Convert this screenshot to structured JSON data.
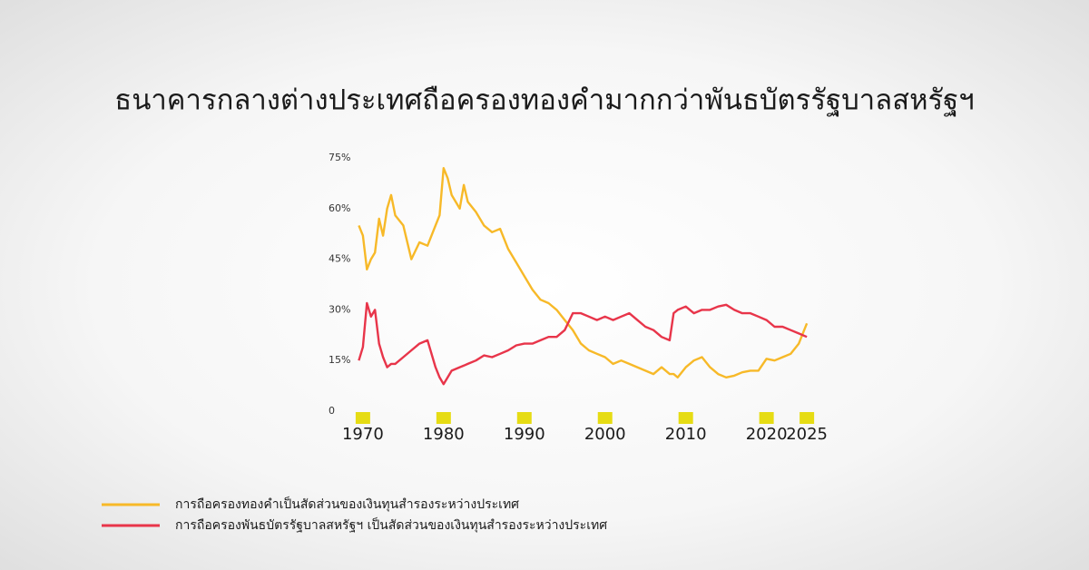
{
  "chart_data": {
    "type": "line",
    "title": "ธนาคารกลางต่างประเทศถือครองทองคำมากกว่าพันธบัตรรัฐบาลสหรัฐฯ",
    "x": [
      1969.5,
      1970,
      1970.5,
      1971,
      1971.5,
      1972,
      1972.5,
      1973,
      1973.5,
      1974,
      1975,
      1976,
      1977,
      1978,
      1979,
      1979.5,
      1980,
      1980.5,
      1981,
      1982,
      1982.5,
      1983,
      1984,
      1985,
      1986,
      1987,
      1988,
      1989,
      1990,
      1991,
      1992,
      1993,
      1994,
      1995,
      1996,
      1997,
      1998,
      1999,
      2000,
      2001,
      2002,
      2003,
      2004,
      2005,
      2006,
      2007,
      2008,
      2008.5,
      2009,
      2010,
      2011,
      2012,
      2013,
      2014,
      2015,
      2016,
      2017,
      2018,
      2019,
      2020,
      2021,
      2022,
      2023,
      2024,
      2025
    ],
    "series": [
      {
        "name": "การถือครองทองคำเป็นสัดส่วนของเงินทุนสำรองระหว่างประเทศ",
        "color": "#f7b928",
        "values": [
          55,
          52,
          42,
          45,
          47,
          57,
          52,
          60,
          64,
          58,
          55,
          45,
          50,
          49,
          55,
          58,
          72,
          69,
          64,
          60,
          67,
          62,
          59,
          55,
          53,
          54,
          48,
          44,
          40,
          36,
          33,
          32,
          30,
          27,
          24,
          20,
          18,
          17,
          16,
          14,
          15,
          14,
          13,
          12,
          11,
          13,
          11,
          11,
          10,
          13,
          15,
          16,
          13,
          11,
          10,
          10.5,
          11.5,
          12,
          12,
          15.5,
          15,
          16,
          17,
          20,
          26
        ]
      },
      {
        "name": "การถือครองพันธบัตรรัฐบาลสหรัฐฯ เป็นสัดส่วนของเงินทุนสำรองระหว่างประเทศ",
        "color": "#e8354a",
        "values": [
          15,
          19,
          32,
          28,
          30,
          20,
          16,
          13,
          14,
          14,
          16,
          18,
          20,
          21,
          13,
          10,
          8,
          10,
          12,
          13,
          13.5,
          14,
          15,
          16.5,
          16,
          17,
          18,
          19.5,
          20,
          20,
          21,
          22,
          22,
          24,
          29,
          29,
          28,
          27,
          28,
          27,
          28,
          29,
          27,
          25,
          24,
          22,
          21,
          29,
          30,
          31,
          29,
          30,
          30,
          31,
          31.5,
          30,
          29,
          29,
          28,
          27,
          25,
          25,
          24,
          23,
          22
        ]
      }
    ],
    "xlim": [
      1969,
      2026
    ],
    "xticks": [
      1970,
      1980,
      1990,
      2000,
      2010,
      2020,
      2025
    ],
    "ylim": [
      0,
      75
    ],
    "yticks": [
      0,
      {
        "value": 15,
        "label": "15%"
      },
      {
        "value": 30,
        "label": "30%"
      },
      {
        "value": 45,
        "label": "45%"
      },
      {
        "value": 60,
        "label": "60%"
      },
      {
        "value": 75,
        "label": "75%"
      }
    ],
    "tick_marker_color": "#e6dc14"
  }
}
